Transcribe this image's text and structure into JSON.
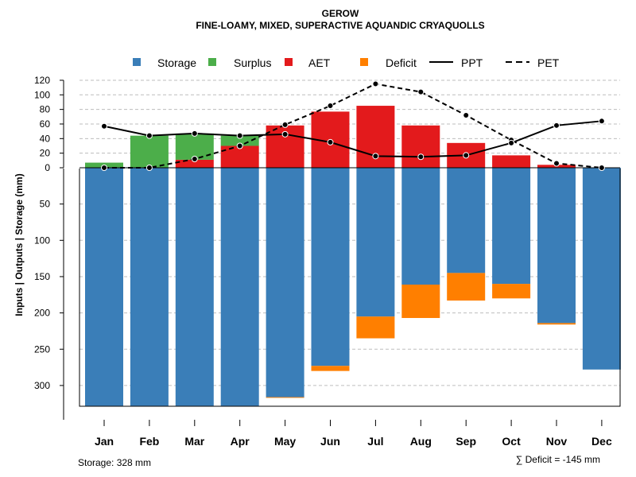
{
  "chart_data": {
    "type": "bar",
    "title": "GEROW",
    "subtitle": "FINE-LOAMY, MIXED, SUPERACTIVE AQUANDIC CRYAQUOLLS",
    "ylabel": "Inputs | Outputs | Storage    (mm)",
    "ylim_top": [
      0,
      120
    ],
    "ylim_bottom": [
      0,
      328
    ],
    "top_ticks": [
      "120",
      "100",
      "80",
      "60",
      "40",
      "20",
      "0"
    ],
    "top_tick_values": [
      120,
      100,
      80,
      60,
      40,
      20,
      0
    ],
    "bottom_ticks": [
      "50",
      "100",
      "150",
      "200",
      "250",
      "300"
    ],
    "bottom_tick_values": [
      50,
      100,
      150,
      200,
      250,
      300
    ],
    "categories": [
      "Jan",
      "Feb",
      "Mar",
      "Apr",
      "May",
      "Jun",
      "Jul",
      "Aug",
      "Sep",
      "Oct",
      "Nov",
      "Dec"
    ],
    "legend": {
      "storage": "Storage",
      "surplus": "Surplus",
      "aet": "AET",
      "deficit": "Deficit",
      "ppt": "PPT",
      "pet": "PET"
    },
    "colors": {
      "storage": "#3a7eb8",
      "surplus": "#4cae4a",
      "aet": "#e31a1c",
      "deficit": "#ff7f00",
      "line": "#000000"
    },
    "series": [
      {
        "name": "AET",
        "values": [
          0,
          0,
          11,
          30,
          58,
          77,
          85,
          58,
          34,
          17,
          4,
          0
        ]
      },
      {
        "name": "Surplus",
        "values": [
          7,
          44,
          36,
          14,
          0,
          0,
          0,
          0,
          0,
          0,
          0,
          0
        ]
      },
      {
        "name": "Storage",
        "values": [
          328,
          328,
          328,
          328,
          316,
          273,
          205,
          161,
          145,
          160,
          214,
          278
        ]
      },
      {
        "name": "Deficit",
        "values": [
          0,
          0,
          0,
          0,
          1,
          7,
          30,
          46,
          38,
          20,
          2,
          0
        ]
      },
      {
        "name": "PPT",
        "values": [
          57,
          44,
          47,
          44,
          46,
          35,
          16,
          15,
          17,
          34,
          58,
          64
        ]
      },
      {
        "name": "PET",
        "values": [
          0,
          0,
          12,
          30,
          59,
          85,
          115,
          104,
          72,
          38,
          6,
          0
        ]
      }
    ],
    "storage_note": "Storage: 328 mm",
    "deficit_note": "∑ Deficit = -145 mm"
  }
}
